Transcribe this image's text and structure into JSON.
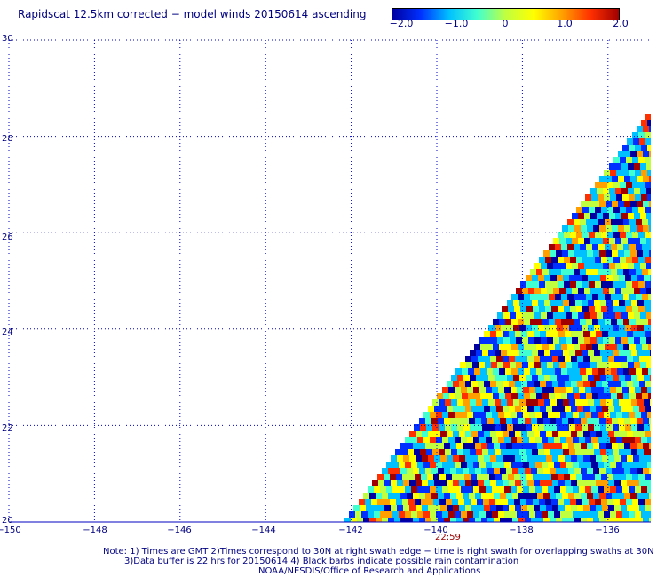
{
  "title": "Rapidscat 12.5km corrected − model winds 20150614 ascending",
  "colorbar": {
    "labels": [
      "−2.0",
      "−1.0",
      "0",
      "1.0",
      "2.0"
    ],
    "stops": [
      "#0000a0",
      "#0030ff",
      "#00c0ff",
      "#40ffd0",
      "#c0ff40",
      "#ffff00",
      "#ffa000",
      "#ff3000",
      "#a00000"
    ]
  },
  "y_labels": [
    "30",
    "28",
    "26",
    "24",
    "22",
    "20"
  ],
  "x_labels": [
    "−150",
    "−148",
    "−146",
    "−144",
    "−142",
    "−140",
    "−138",
    "−136"
  ],
  "swath_time": "22:59",
  "notes": {
    "line1": "Note: 1) Times are GMT 2)Times correspond to 30N at right swath edge − time is right swath for overlapping swaths at 30N",
    "line2": "3)Data buffer is 22 hrs for 20150614 4) Black barbs indicate possible rain contamination",
    "line3": "NOAA/NESDIS/Office of Research and Applications"
  },
  "map": {
    "lon_range": [
      -150,
      -135
    ],
    "lat_range": [
      20,
      30
    ],
    "grid_color": "#0000c0"
  }
}
